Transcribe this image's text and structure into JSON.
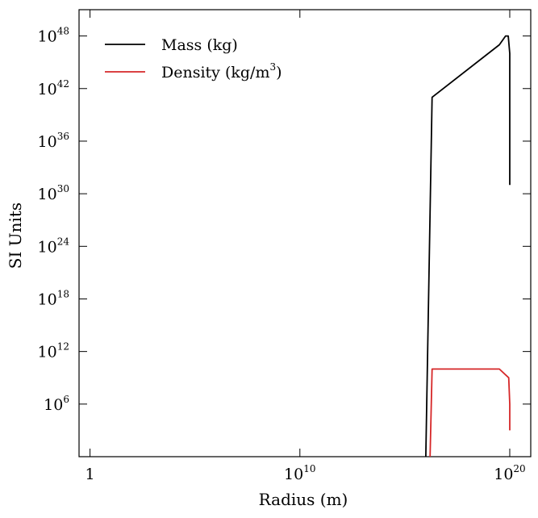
{
  "chart_data": {
    "type": "line",
    "xscale": "log",
    "yscale": "log",
    "xlim": [
      0.3,
      1e+21
    ],
    "ylim": [
      1,
      1e+51
    ],
    "xlabel": "Radius (m)",
    "ylabel": "SI Units",
    "x_ticks": [
      {
        "value": 1,
        "base": "1",
        "exp": ""
      },
      {
        "value": 10000000000.0,
        "base": "10",
        "exp": "10"
      },
      {
        "value": 1e+20,
        "base": "10",
        "exp": "20"
      }
    ],
    "y_ticks": [
      {
        "value": 1000000.0,
        "base": "10",
        "exp": "6"
      },
      {
        "value": 1000000000000.0,
        "base": "10",
        "exp": "12"
      },
      {
        "value": 1e+18,
        "base": "10",
        "exp": "18"
      },
      {
        "value": 1e+24,
        "base": "10",
        "exp": "24"
      },
      {
        "value": 1e+30,
        "base": "10",
        "exp": "30"
      },
      {
        "value": 1e+36,
        "base": "10",
        "exp": "36"
      },
      {
        "value": 1e+42,
        "base": "10",
        "exp": "42"
      },
      {
        "value": 1e+48,
        "base": "10",
        "exp": "48"
      }
    ],
    "legend": {
      "position": "upper-left",
      "entries": [
        {
          "label": "Mass (kg)",
          "exp": ""
        },
        {
          "label": "Density (kg/m",
          "exp": "3",
          "suffix": ")"
        }
      ]
    },
    "series": [
      {
        "name": "Mass (kg)",
        "color": "#000000",
        "points": [
          [
            1e+16,
            1.0
          ],
          [
            2e+16,
            1e+41
          ],
          [
            3.2e+19,
            1e+47
          ],
          [
            6.3e+19,
            1e+48
          ],
          [
            8.5e+19,
            1e+48
          ],
          [
            1e+20,
            1e+46
          ],
          [
            1e+20,
            1e+31
          ]
        ]
      },
      {
        "name": "Density (kg/m3)",
        "color": "#d62728",
        "points": [
          [
            1.6e+16,
            1.0
          ],
          [
            2e+16,
            10000000000.0
          ],
          [
            3.2e+19,
            10000000000.0
          ],
          [
            8.9e+19,
            1000000000.0
          ],
          [
            1e+20,
            1000000.0
          ],
          [
            1e+20,
            1000.0
          ]
        ]
      }
    ]
  }
}
